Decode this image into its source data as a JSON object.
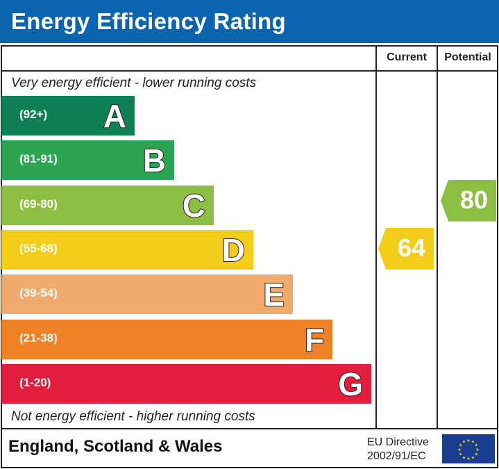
{
  "header": {
    "title": "Energy Efficiency Rating"
  },
  "columns": {
    "current": "Current",
    "potential": "Potential"
  },
  "notes": {
    "top": "Very energy efficient - lower running costs",
    "bottom": "Not energy efficient - higher running costs"
  },
  "footer": {
    "region": "England, Scotland & Wales",
    "directive_line1": "EU Directive",
    "directive_line2": "2002/91/EC"
  },
  "chart_data": {
    "type": "bar",
    "title": "Energy Efficiency Rating",
    "bands": [
      {
        "letter": "A",
        "range": "(92+)",
        "min": 92,
        "max": 100,
        "color": "#0f7f55"
      },
      {
        "letter": "B",
        "range": "(81-91)",
        "min": 81,
        "max": 91,
        "color": "#2ba552"
      },
      {
        "letter": "C",
        "range": "(69-80)",
        "min": 69,
        "max": 80,
        "color": "#8cbe44"
      },
      {
        "letter": "D",
        "range": "(55-68)",
        "min": 55,
        "max": 68,
        "color": "#f4cc1a"
      },
      {
        "letter": "E",
        "range": "(39-54)",
        "min": 39,
        "max": 54,
        "color": "#f2a96c"
      },
      {
        "letter": "F",
        "range": "(21-38)",
        "min": 21,
        "max": 38,
        "color": "#ee8026"
      },
      {
        "letter": "G",
        "range": "(1-20)",
        "min": 1,
        "max": 20,
        "color": "#e21e3d"
      }
    ],
    "current": 64,
    "potential": 80
  }
}
